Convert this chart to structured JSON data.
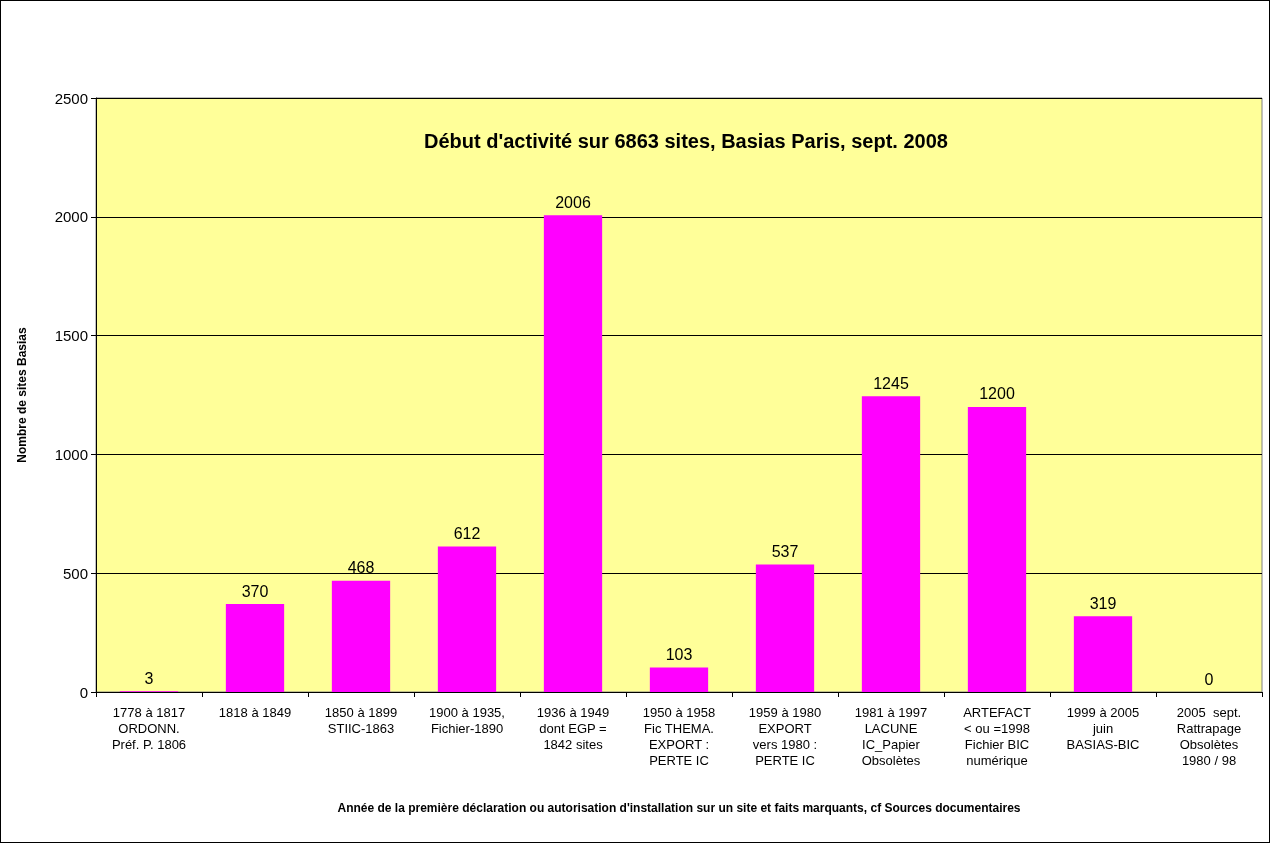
{
  "chart_data": {
    "type": "bar",
    "title": "Début d'activité sur 6863 sites, Basias Paris, sept. 2008",
    "xlabel": "Année de la première déclaration ou autorisation d'installation sur un site et faits marquants, cf Sources documentaires",
    "ylabel": "Nombre de sites Basias",
    "categories": [
      "1778 à 1817\nORDONN.\nPréf. P. 1806",
      "1818 à 1849",
      "1850 à 1899\nSTIIC-1863",
      "1900 à 1935,\nFichier-1890",
      "1936 à 1949\ndont EGP =\n1842 sites",
      "1950 à 1958\nFic THEMA.\nEXPORT :\nPERTE IC",
      "1959 à 1980\nEXPORT\nvers 1980 :\nPERTE IC",
      "1981 à 1997\nLACUNE\nIC_Papier\nObsolètes",
      "ARTEFACT\n< ou =1998\nFichier BIC\nnumérique",
      "1999 à 2005\njuin\nBASIAS-BIC",
      "2005  sept.\nRattrapage\nObsolètes\n1980 / 98"
    ],
    "values": [
      3,
      370,
      468,
      612,
      2006,
      103,
      537,
      1245,
      1200,
      319,
      0
    ],
    "color": "#ff00ff",
    "ylim": [
      0,
      2500
    ],
    "yticks": [
      0,
      500,
      1000,
      1500,
      2000,
      2500
    ],
    "grid": "y",
    "data_labels": true
  }
}
